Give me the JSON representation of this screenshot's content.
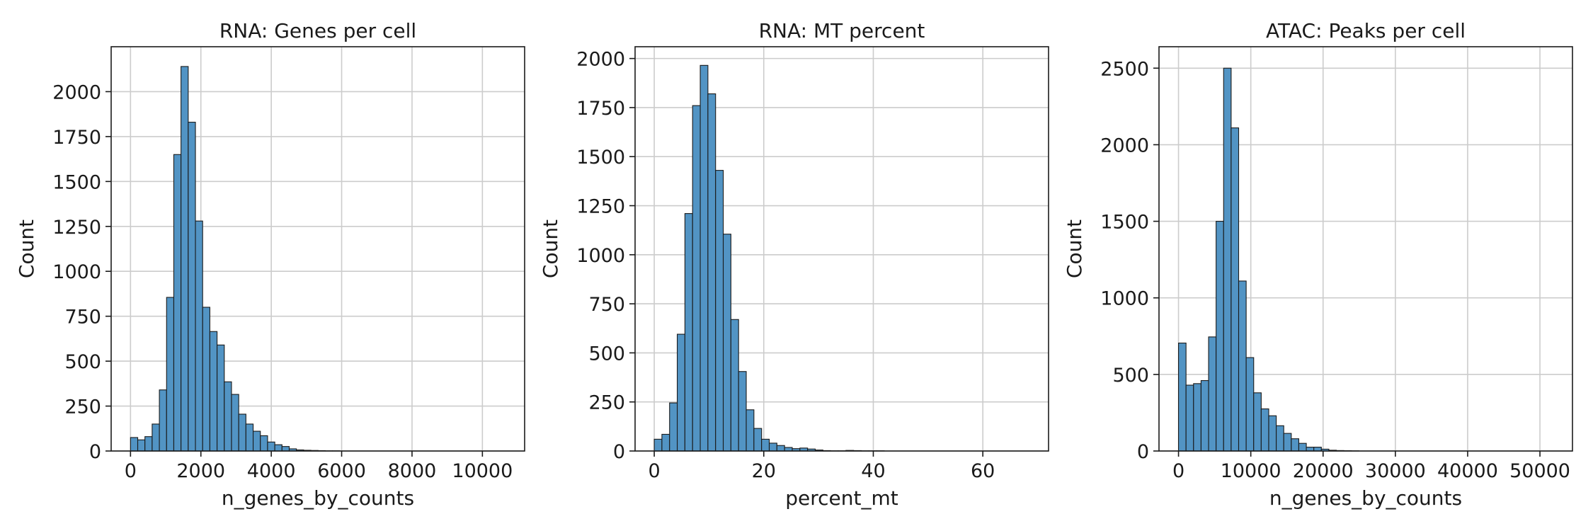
{
  "figure": {
    "bar_color": "#5294c4",
    "edge_color": "#1a1a1a",
    "grid_color": "#cccccc"
  },
  "chart_data": [
    {
      "type": "bar",
      "title": "RNA: Genes per cell",
      "xlabel": "n_genes_by_counts",
      "ylabel": "Count",
      "grid": true,
      "xlim": [
        -550,
        11200
      ],
      "ylim": [
        0,
        2250
      ],
      "xticks": [
        0,
        2000,
        4000,
        6000,
        8000,
        10000
      ],
      "yticks": [
        0,
        250,
        500,
        750,
        1000,
        1250,
        1500,
        1750,
        2000
      ],
      "bin_width": 205,
      "bin_start": 0,
      "values": [
        75,
        62,
        80,
        150,
        340,
        855,
        1650,
        2140,
        1830,
        1280,
        800,
        665,
        590,
        385,
        315,
        205,
        150,
        110,
        85,
        50,
        35,
        25,
        12,
        6,
        4,
        3,
        2,
        1,
        1
      ]
    },
    {
      "type": "bar",
      "title": "RNA: MT percent",
      "xlabel": "percent_mt",
      "ylabel": "Count",
      "grid": true,
      "xlim": [
        -3.5,
        72
      ],
      "ylim": [
        0,
        2060
      ],
      "xticks": [
        0,
        20,
        40,
        60
      ],
      "yticks": [
        0,
        250,
        500,
        750,
        1000,
        1250,
        1500,
        1750,
        2000
      ],
      "bin_width": 1.4,
      "bin_start": 0,
      "values": [
        60,
        85,
        245,
        595,
        1210,
        1760,
        1965,
        1820,
        1430,
        1105,
        670,
        405,
        210,
        115,
        60,
        40,
        28,
        18,
        12,
        15,
        10,
        5,
        2,
        1,
        1,
        3,
        2,
        1,
        1,
        1
      ]
    },
    {
      "type": "bar",
      "title": "ATAC: Peaks per cell",
      "xlabel": "n_genes_by_counts",
      "ylabel": "Count",
      "grid": true,
      "xlim": [
        -2700,
        54500
      ],
      "ylim": [
        0,
        2640
      ],
      "xticks": [
        0,
        10000,
        20000,
        30000,
        40000,
        50000
      ],
      "yticks": [
        0,
        500,
        1000,
        1500,
        2000,
        2500
      ],
      "bin_width": 1040,
      "bin_start": 0,
      "values": [
        705,
        430,
        440,
        460,
        745,
        1500,
        2500,
        2110,
        1110,
        610,
        380,
        275,
        230,
        165,
        115,
        80,
        50,
        25,
        25,
        12,
        5,
        3,
        2,
        1
      ]
    }
  ]
}
